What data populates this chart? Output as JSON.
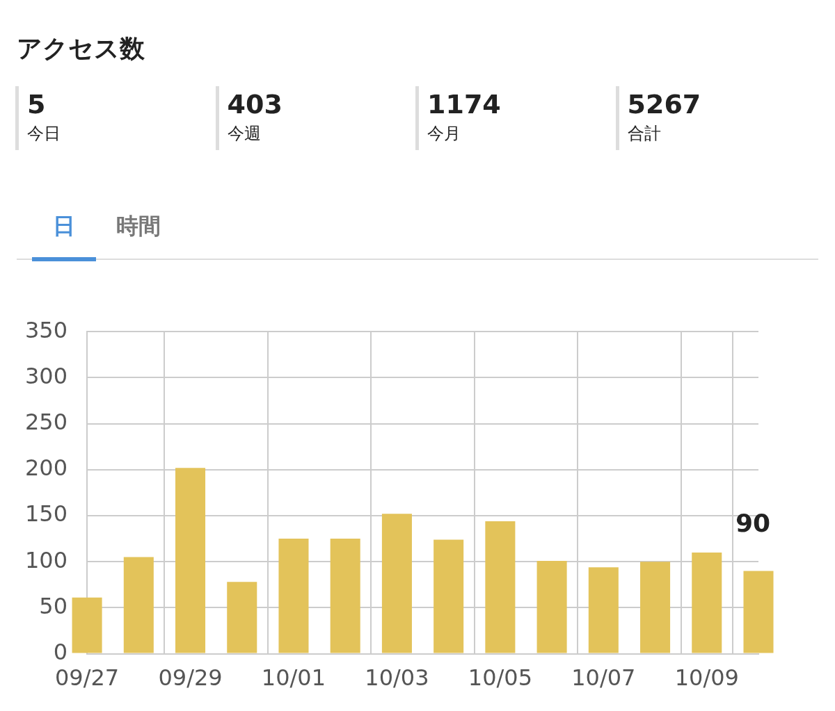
{
  "chart_data": {
    "type": "bar",
    "title": "アクセス数",
    "annotations": [
      "5",
      "今日",
      "403",
      "今週",
      "1174",
      "今月",
      "5267",
      "合計",
      "日",
      "時間"
    ],
    "categories": [
      "09/27",
      null,
      "09/29",
      null,
      "10/01",
      null,
      "10/03",
      null,
      "10/05",
      null,
      "10/07",
      null,
      "10/09",
      null
    ],
    "values": [
      61,
      105,
      202,
      78,
      125,
      125,
      152,
      124,
      144,
      101,
      94,
      100,
      110,
      90
    ],
    "value_labels": [
      null,
      null,
      null,
      null,
      null,
      null,
      null,
      null,
      null,
      null,
      null,
      null,
      null,
      "90"
    ],
    "color": "#e3c35a",
    "ylim": [
      0,
      350
    ],
    "yticks": [
      0,
      50,
      100,
      150,
      200,
      250,
      300,
      350
    ],
    "grid": true,
    "legend": false
  }
}
